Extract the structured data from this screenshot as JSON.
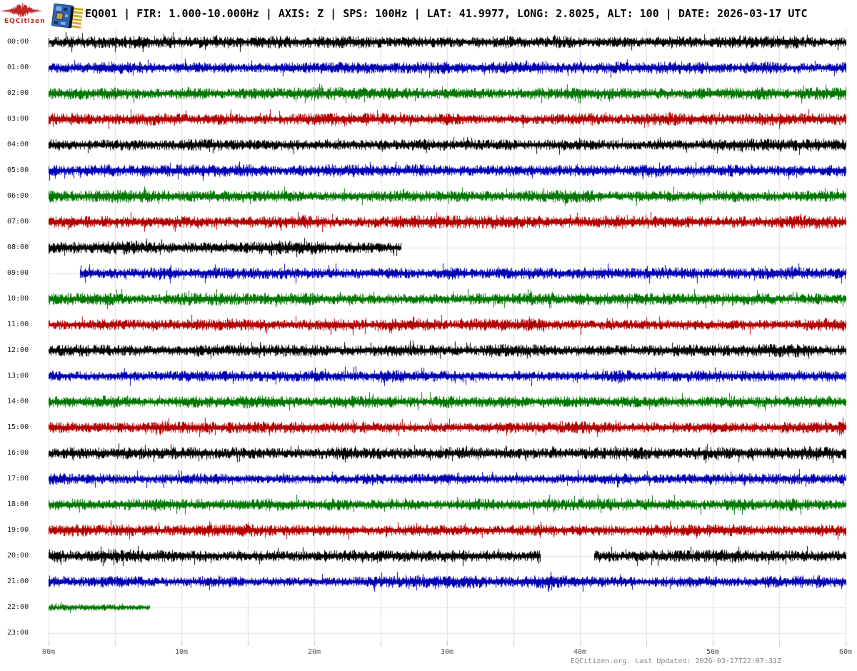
{
  "header": {
    "logo_text": "EQCitizen",
    "title": "EQ001 | FIR: 1.000-10.000Hz | AXIS: Z | SPS: 100Hz | LAT: 41.9977, LONG: 2.8025, ALT: 100 | DATE: 2026-03-17 UTC"
  },
  "footer": {
    "credit": "EQCitizen.org. Last Updated: 2026-03-17T22:07:31Z"
  },
  "chart_data": {
    "type": "line",
    "subtype": "helicorder_dayplot",
    "title": "24-hour seismogram, one row per hour, Z axis, 1.000-10.000Hz bandpass",
    "x_axis": {
      "unit": "minutes",
      "range": [
        0,
        60
      ],
      "gridline_every_min": 5,
      "ticks": [
        {
          "label": "00m",
          "min": 0
        },
        {
          "label": "10m",
          "min": 10
        },
        {
          "label": "20m",
          "min": 20
        },
        {
          "label": "30m",
          "min": 30
        },
        {
          "label": "40m",
          "min": 40
        },
        {
          "label": "50m",
          "min": 50
        },
        {
          "label": "60m",
          "min": 60
        }
      ]
    },
    "trace_colors": {
      "black": "#000000",
      "blue": "#0000b3",
      "green": "#007700",
      "red": "#b30000"
    },
    "grid_color": "#dfdfdf",
    "rows": [
      {
        "hour": "00:00",
        "color": "black",
        "segments_min": [
          [
            0,
            60
          ]
        ],
        "amplitude": 1.0
      },
      {
        "hour": "01:00",
        "color": "blue",
        "segments_min": [
          [
            0,
            60
          ]
        ],
        "amplitude": 1.0
      },
      {
        "hour": "02:00",
        "color": "green",
        "segments_min": [
          [
            0,
            60
          ]
        ],
        "amplitude": 1.0
      },
      {
        "hour": "03:00",
        "color": "red",
        "segments_min": [
          [
            0,
            60
          ]
        ],
        "amplitude": 1.0
      },
      {
        "hour": "04:00",
        "color": "black",
        "segments_min": [
          [
            0,
            60
          ]
        ],
        "amplitude": 1.0
      },
      {
        "hour": "05:00",
        "color": "blue",
        "segments_min": [
          [
            0,
            60
          ]
        ],
        "amplitude": 1.0
      },
      {
        "hour": "06:00",
        "color": "green",
        "segments_min": [
          [
            0,
            60
          ]
        ],
        "amplitude": 1.0
      },
      {
        "hour": "07:00",
        "color": "red",
        "segments_min": [
          [
            0,
            60
          ]
        ],
        "amplitude": 1.12
      },
      {
        "hour": "08:00",
        "color": "black",
        "segments_min": [
          [
            0,
            26.5
          ]
        ],
        "amplitude": 1.08
      },
      {
        "hour": "09:00",
        "color": "blue",
        "segments_min": [
          [
            2.35,
            60
          ]
        ],
        "amplitude": 1.0
      },
      {
        "hour": "10:00",
        "color": "green",
        "segments_min": [
          [
            0,
            60
          ]
        ],
        "amplitude": 1.0
      },
      {
        "hour": "11:00",
        "color": "red",
        "segments_min": [
          [
            0,
            60
          ]
        ],
        "amplitude": 1.0
      },
      {
        "hour": "12:00",
        "color": "black",
        "segments_min": [
          [
            0,
            60
          ]
        ],
        "amplitude": 1.05
      },
      {
        "hour": "13:00",
        "color": "blue",
        "segments_min": [
          [
            0,
            60
          ]
        ],
        "amplitude": 1.0
      },
      {
        "hour": "14:00",
        "color": "green",
        "segments_min": [
          [
            0,
            60
          ]
        ],
        "amplitude": 1.0
      },
      {
        "hour": "15:00",
        "color": "red",
        "segments_min": [
          [
            0,
            60
          ]
        ],
        "amplitude": 1.0
      },
      {
        "hour": "16:00",
        "color": "black",
        "segments_min": [
          [
            0,
            60
          ]
        ],
        "amplitude": 1.05
      },
      {
        "hour": "17:00",
        "color": "blue",
        "segments_min": [
          [
            0,
            60
          ]
        ],
        "amplitude": 0.95
      },
      {
        "hour": "18:00",
        "color": "green",
        "segments_min": [
          [
            0,
            60
          ]
        ],
        "amplitude": 1.0
      },
      {
        "hour": "19:00",
        "color": "red",
        "segments_min": [
          [
            0,
            60
          ]
        ],
        "amplitude": 1.0
      },
      {
        "hour": "20:00",
        "color": "black",
        "segments_min": [
          [
            0,
            37.0
          ],
          [
            41.1,
            60
          ]
        ],
        "amplitude": 1.05
      },
      {
        "hour": "21:00",
        "color": "blue",
        "segments_min": [
          [
            0,
            60
          ]
        ],
        "amplitude": 1.0
      },
      {
        "hour": "22:00",
        "color": "green",
        "segments_min": [
          [
            0,
            7.6
          ]
        ],
        "amplitude": 0.55
      },
      {
        "hour": "23:00",
        "color": "red",
        "segments_min": [],
        "amplitude": 1.0
      }
    ]
  }
}
